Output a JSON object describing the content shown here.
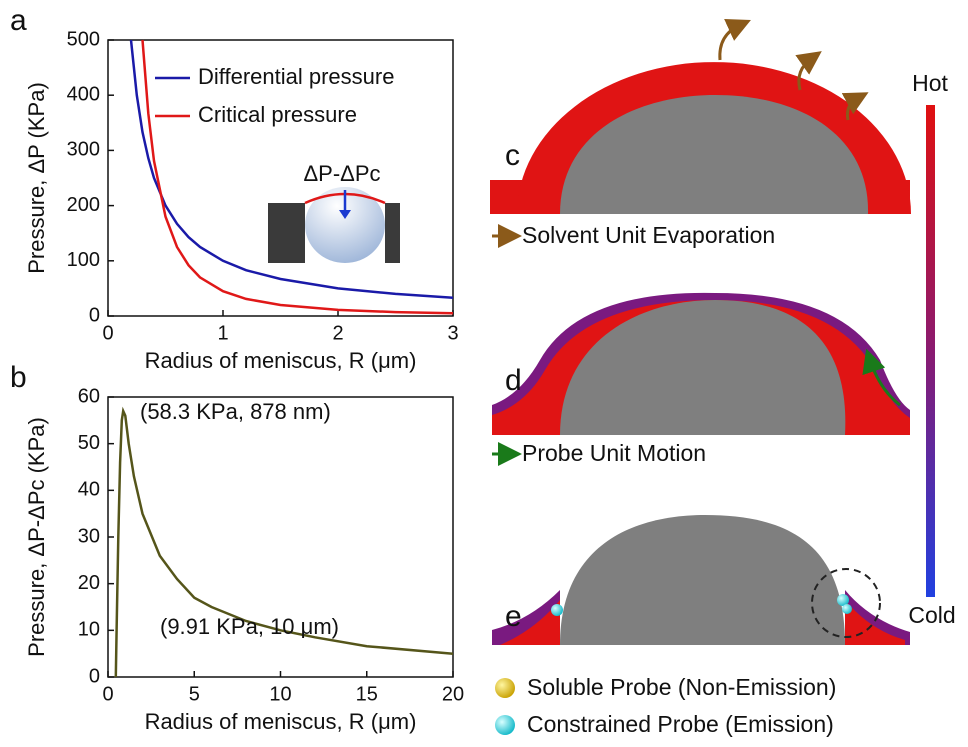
{
  "chart_data": [
    {
      "type": "line",
      "panel_label": "a",
      "x_label": "Radius of meniscus, R (μm)",
      "y_label": "Pressure, ΔP (KPa)",
      "xlim": [
        0,
        3
      ],
      "ylim": [
        0,
        500
      ],
      "xticks": [
        0,
        1,
        2,
        3
      ],
      "yticks": [
        0,
        100,
        200,
        300,
        400,
        500
      ],
      "inset_label": "ΔP-ΔPc",
      "x": [
        0.2,
        0.25,
        0.3,
        0.35,
        0.4,
        0.5,
        0.6,
        0.7,
        0.8,
        1,
        1.2,
        1.5,
        2,
        2.5,
        3
      ],
      "series": [
        {
          "name": "Differential pressure",
          "color": "#1a1aa8",
          "values": [
            500,
            400,
            333,
            286,
            250,
            200,
            167,
            143,
            125,
            100,
            83,
            67,
            50,
            40,
            33
          ]
        },
        {
          "name": "Critical pressure",
          "color": "#e01818",
          "values": [
            null,
            null,
            500,
            367,
            281,
            180,
            125,
            92,
            70,
            45,
            31,
            20,
            11,
            7,
            5
          ]
        }
      ]
    },
    {
      "type": "line",
      "panel_label": "b",
      "x_label": "Radius of meniscus, R (μm)",
      "y_label": "Pressure, ΔP-ΔPc (KPa)",
      "xlim": [
        0,
        20
      ],
      "ylim": [
        0,
        60
      ],
      "xticks": [
        0,
        5,
        10,
        15,
        20
      ],
      "yticks": [
        0,
        10,
        20,
        30,
        40,
        50,
        60
      ],
      "annotations": [
        "(58.3 KPa, 878 nm)",
        "(9.91 KPa, 10 μm)"
      ],
      "x": [
        0.45,
        0.5,
        0.6,
        0.7,
        0.8,
        0.88,
        1,
        1.2,
        1.5,
        2,
        3,
        4,
        5,
        6,
        8,
        10,
        12,
        15,
        20
      ],
      "series": [
        {
          "name": null,
          "color": "#55551a",
          "values": [
            0,
            10,
            30,
            46,
            55,
            57,
            56,
            50,
            43,
            35,
            26,
            21,
            17,
            15,
            12,
            10,
            8.5,
            6.6,
            5
          ]
        }
      ]
    }
  ],
  "panels": {
    "c": {
      "label": "c",
      "caption": "Solvent Unit Evaporation"
    },
    "d": {
      "label": "d",
      "caption": "Probe Unit Motion"
    },
    "e": {
      "label": "e"
    }
  },
  "colorbar": {
    "top": "Hot",
    "bottom": "Cold"
  },
  "legend": [
    "Soluble Probe (Non-Emission)",
    "Constrained Probe (Emission)"
  ]
}
